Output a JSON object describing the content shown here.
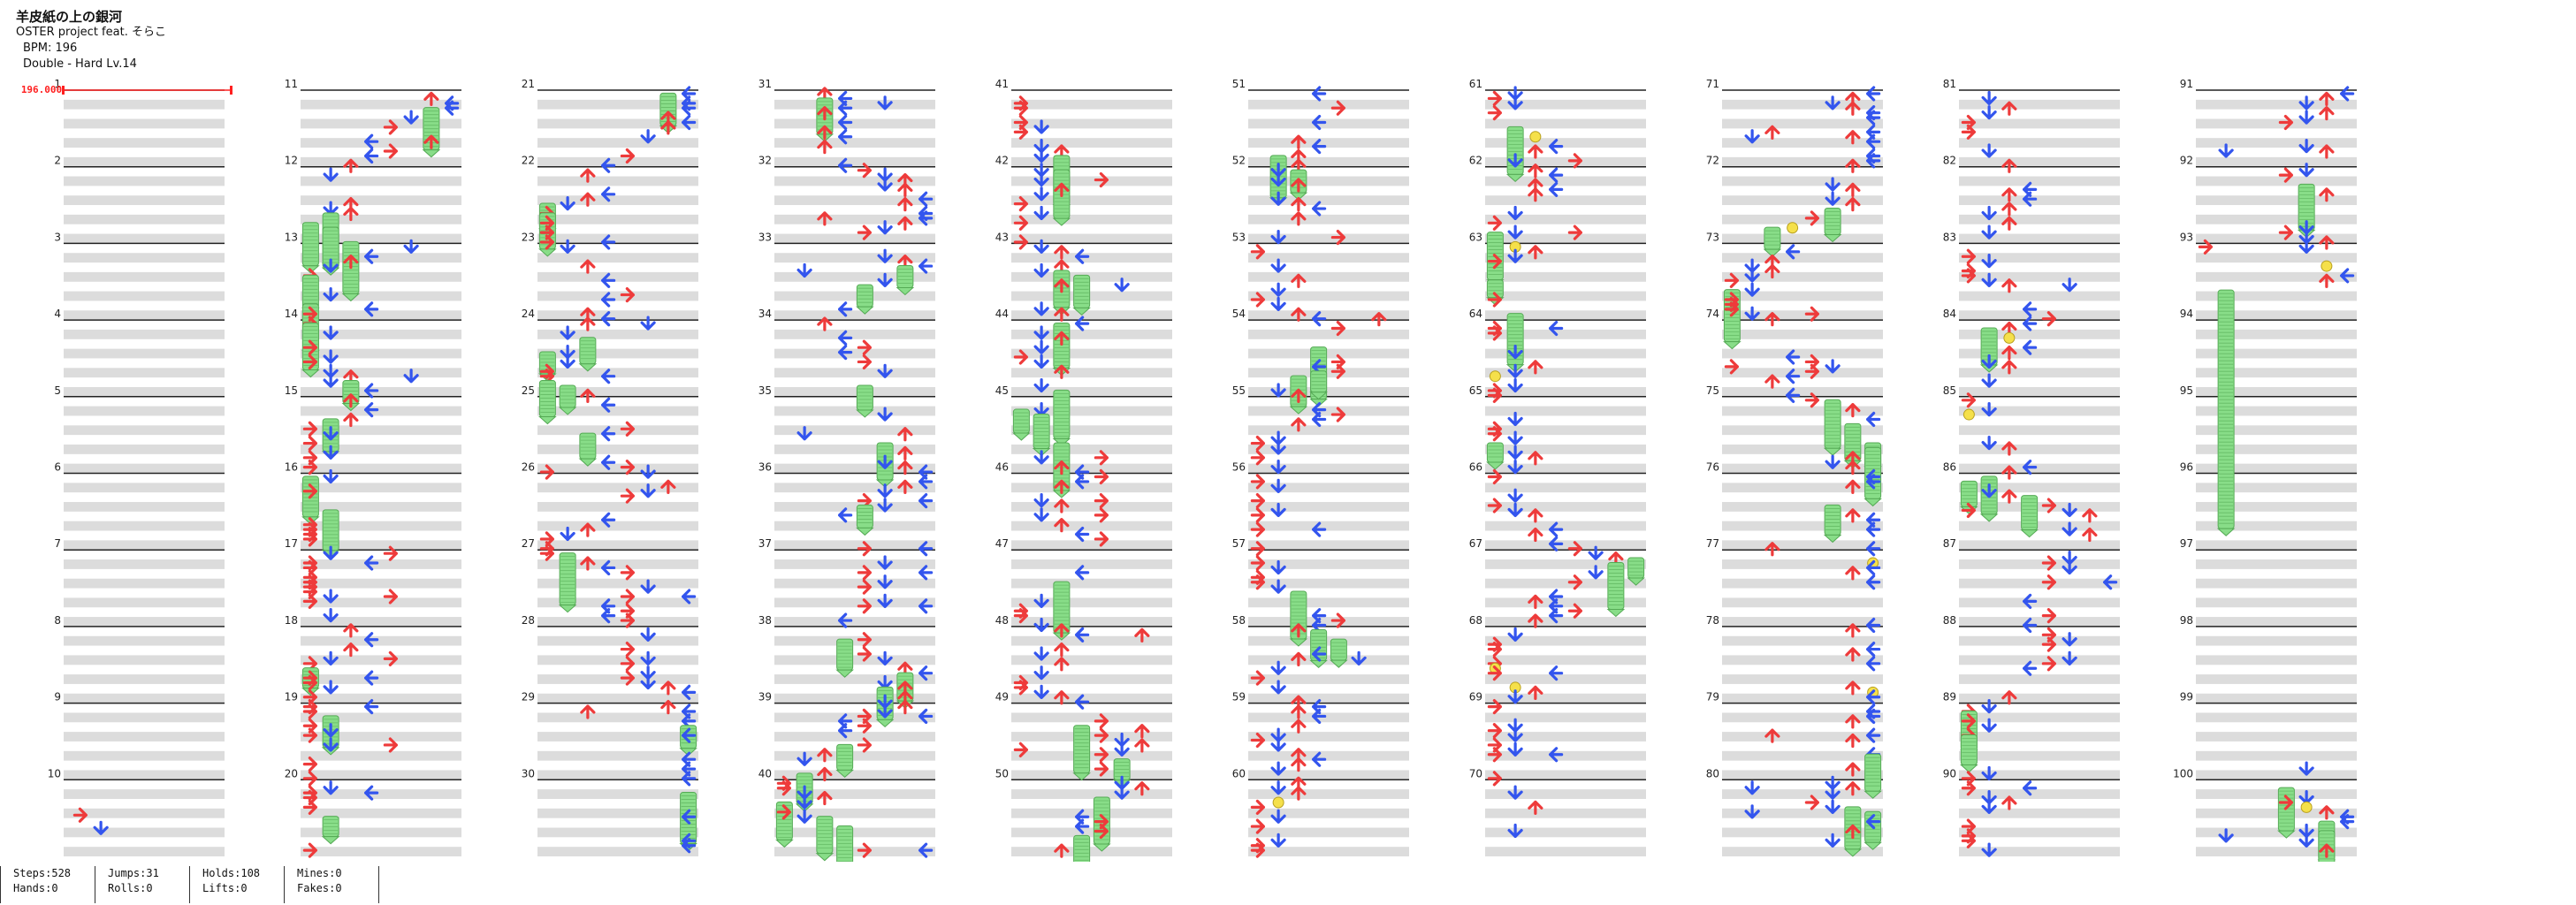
{
  "song": {
    "title": "羊皮紙の上の銀河",
    "artist": "OSTER project feat. そらこ",
    "bpm": "BPM: 196",
    "difficulty": "Double - Hard Lv.14"
  },
  "bpm_marker": "196.000",
  "measures": [
    "1",
    "2",
    "3",
    "4",
    "5",
    "6",
    "7",
    "8",
    "9",
    "10",
    "11",
    "12",
    "13",
    "14",
    "15",
    "16",
    "17",
    "18",
    "19",
    "20",
    "21",
    "22",
    "23",
    "24",
    "25",
    "26",
    "27",
    "28",
    "29",
    "30",
    "31",
    "32",
    "33",
    "34",
    "35",
    "36",
    "37",
    "38",
    "39",
    "40",
    "41",
    "42",
    "43",
    "44",
    "45",
    "46",
    "47",
    "48",
    "49",
    "50",
    "51",
    "52",
    "53",
    "54",
    "55",
    "56",
    "57",
    "58",
    "59",
    "60",
    "61",
    "62",
    "63",
    "64",
    "65",
    "66",
    "67",
    "68",
    "69",
    "70",
    "71",
    "72",
    "73",
    "74",
    "75",
    "76",
    "77",
    "78",
    "79",
    "80",
    "81",
    "82",
    "83",
    "84",
    "85",
    "86",
    "87",
    "88",
    "89",
    "90",
    "91",
    "92",
    "93",
    "94",
    "95",
    "96",
    "97",
    "98",
    "99",
    "100"
  ],
  "stats": [
    {
      "top": "Steps:528",
      "bottom": "Hands:0"
    },
    {
      "top": "Jumps:31",
      "bottom": "Rolls:0"
    },
    {
      "top": "Holds:108",
      "bottom": "Lifts:0"
    },
    {
      "top": "Mines:0",
      "bottom": "Fakes:0"
    }
  ],
  "colors": {
    "red": "#ee3b3b",
    "blue": "#3355ee",
    "hold": "#88dd88",
    "mine": "#f5e04a",
    "band": "#dcdcdc"
  }
}
